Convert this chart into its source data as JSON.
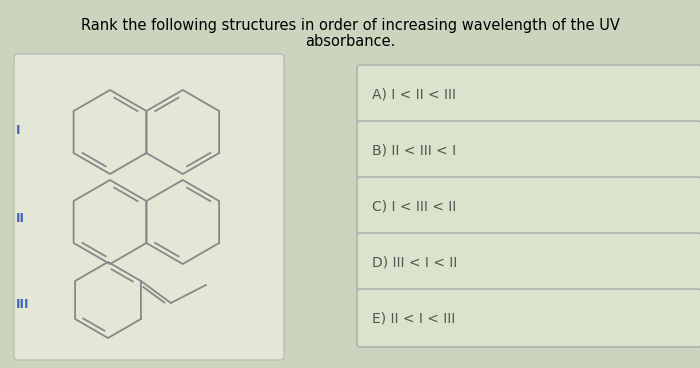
{
  "title_line1": "Rank the following structures in order of increasing wavelength of the UV",
  "title_line2": "absorbance.",
  "title_fontsize": 10.5,
  "bg_color": "#cdd4be",
  "box_bg": "#e2e8d5",
  "answer_box_bg": "#dce3cc",
  "answer_box_border": "#aaaaaa",
  "roman_color": "#4466bb",
  "line_color": "#888888",
  "answer_text_color": "#555555",
  "answers": [
    "A) I < II < III",
    "B) II < III < I",
    "C) I < III < II",
    "D) III < I < II",
    "E) II < I < III"
  ]
}
